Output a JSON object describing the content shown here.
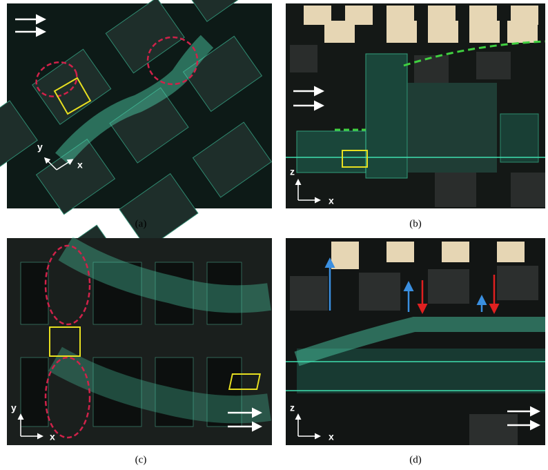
{
  "panels": [
    {
      "caption": "(a)",
      "axes": [
        "y",
        "x"
      ]
    },
    {
      "caption": "(b)",
      "axes": [
        "z",
        "x"
      ]
    },
    {
      "caption": "(c)",
      "axes": [
        "y",
        "x"
      ]
    },
    {
      "caption": "(d)",
      "axes": [
        "z",
        "x"
      ]
    }
  ]
}
